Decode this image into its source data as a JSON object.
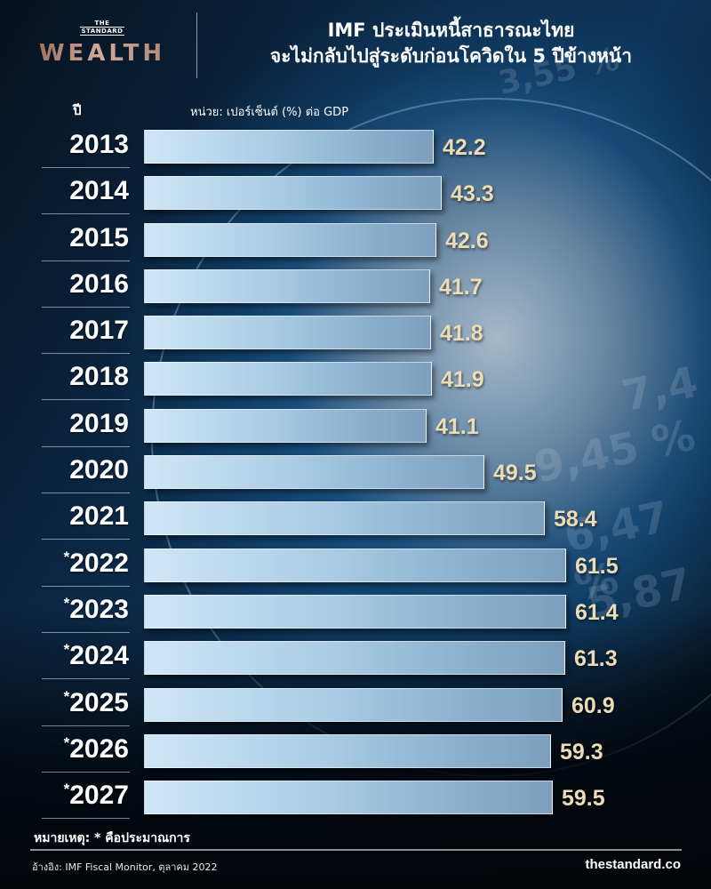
{
  "header": {
    "logo_small_line1": "THE",
    "logo_small_line2": "STANDARD",
    "logo_big": "WEALTH",
    "title_line1": "IMF ประเมินหนี้สาธารณะไทย",
    "title_line2": "จะไม่กลับไปสู่ระดับก่อนโควิดใน 5 ปีข้างหน้า"
  },
  "columns": {
    "year_header": "ปี",
    "unit_label": "หน่วย: เปอร์เซ็นต์ (%) ต่อ GDP"
  },
  "rows": [
    {
      "star": "",
      "year": "2013",
      "value": "42.2"
    },
    {
      "star": "",
      "year": "2014",
      "value": "43.3"
    },
    {
      "star": "",
      "year": "2015",
      "value": "42.6"
    },
    {
      "star": "",
      "year": "2016",
      "value": "41.7"
    },
    {
      "star": "",
      "year": "2017",
      "value": "41.8"
    },
    {
      "star": "",
      "year": "2018",
      "value": "41.9"
    },
    {
      "star": "",
      "year": "2019",
      "value": "41.1"
    },
    {
      "star": "",
      "year": "2020",
      "value": "49.5"
    },
    {
      "star": "",
      "year": "2021",
      "value": "58.4"
    },
    {
      "star": "*",
      "year": "2022",
      "value": "61.5"
    },
    {
      "star": "*",
      "year": "2023",
      "value": "61.4"
    },
    {
      "star": "*",
      "year": "2024",
      "value": "61.3"
    },
    {
      "star": "*",
      "year": "2025",
      "value": "60.9"
    },
    {
      "star": "*",
      "year": "2026",
      "value": "59.3"
    },
    {
      "star": "*",
      "year": "2027",
      "value": "59.5"
    }
  ],
  "footer": {
    "note": "หมายเหตุ: * คือประมาณการ",
    "source": "อ้างอิง: IMF Fiscal Monitor, ตุลาคม 2022",
    "site": "thestandard.co"
  },
  "background_decor": [
    "9,45 %",
    "6,47 %",
    "5,87",
    "3,55 %",
    "7,4"
  ],
  "colors": {
    "bar_light": "#cfe6f7",
    "bar_dark": "#7d9fbe",
    "value_text": "#ecdcb6",
    "logo_copper": "#b58d7c",
    "background_dark": "#0b2540"
  },
  "chart_data": {
    "type": "bar",
    "orientation": "horizontal",
    "title": "IMF ประเมินหนี้สาธารณะไทย จะไม่กลับไปสู่ระดับก่อนโควิดใน 5 ปีข้างหน้า",
    "xlabel": "หน่วย: เปอร์เซ็นต์ (%) ต่อ GDP",
    "ylabel": "ปี",
    "categories": [
      "2013",
      "2014",
      "2015",
      "2016",
      "2017",
      "2018",
      "2019",
      "2020",
      "2021",
      "*2022",
      "*2023",
      "*2024",
      "*2025",
      "*2026",
      "*2027"
    ],
    "values": [
      42.2,
      43.3,
      42.6,
      41.7,
      41.8,
      41.9,
      41.1,
      49.5,
      58.4,
      61.5,
      61.4,
      61.3,
      60.9,
      59.3,
      59.5
    ],
    "forecast_from": "2022",
    "annotations": [
      "หมายเหตุ: * คือประมาณการ",
      "อ้างอิง: IMF Fiscal Monitor, ตุลาคม 2022"
    ],
    "grid": false,
    "legend": null,
    "data_labels": true
  }
}
